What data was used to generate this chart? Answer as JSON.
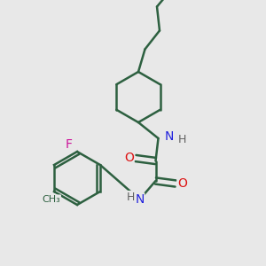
{
  "background_color": "#e8e8e8",
  "bond_color": "#2d6040",
  "bond_lw": 1.8,
  "atom_colors": {
    "N": "#2222dd",
    "O": "#dd1111",
    "F": "#cc1199",
    "H": "#606060",
    "C": "#2d6040"
  },
  "font_size": 9,
  "figsize": [
    3.0,
    3.0
  ],
  "dpi": 100
}
